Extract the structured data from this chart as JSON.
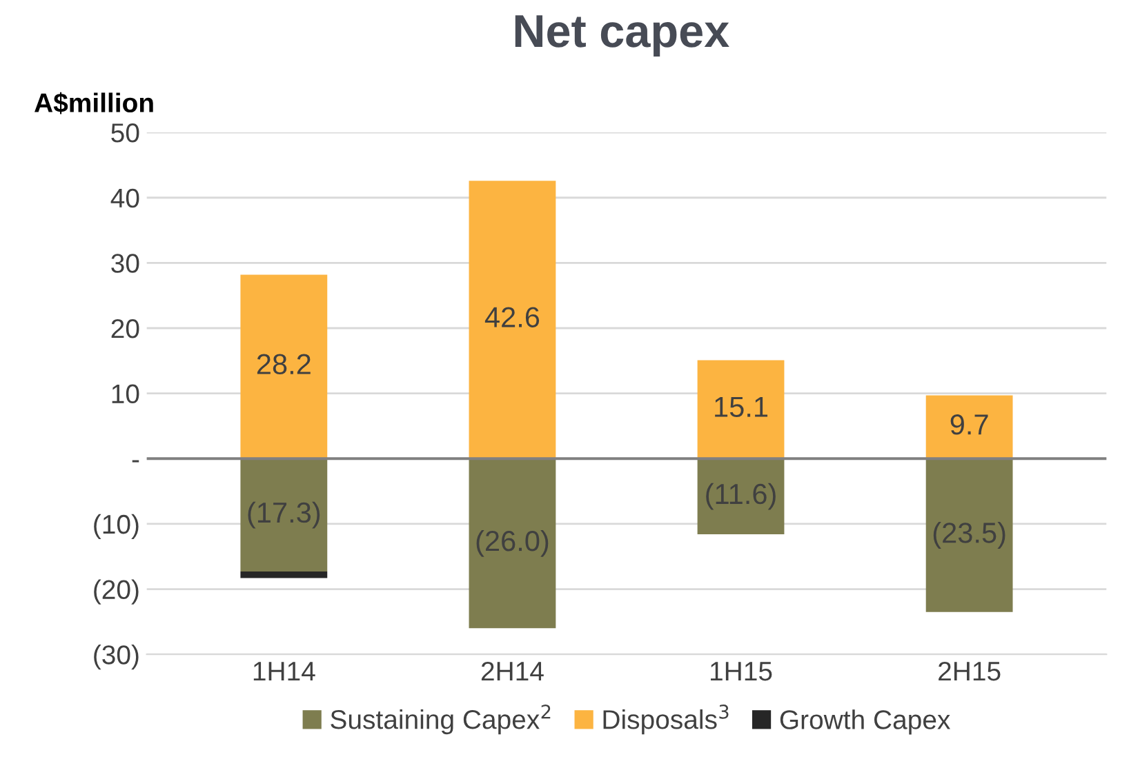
{
  "chart_data": {
    "type": "bar",
    "title": "Net capex",
    "ylabel": "A$million",
    "categories": [
      "1H14",
      "2H14",
      "1H15",
      "2H15"
    ],
    "stacked": true,
    "series": [
      {
        "name": "Sustaining Capex$^{2}$",
        "color": "#7e7d4f",
        "values": [
          -17.3,
          -26.0,
          -11.6,
          -23.5
        ],
        "value_labels": [
          "(17.3)",
          "(26.0)",
          "(11.6)",
          "(23.5)"
        ]
      },
      {
        "name": "Disposals$^{3}$",
        "color": "#fcb441",
        "values": [
          28.2,
          42.6,
          15.1,
          9.7
        ],
        "value_labels": [
          "28.2",
          "42.6",
          "15.1",
          "9.7"
        ]
      },
      {
        "name": "Growth Capex",
        "color": "#262626",
        "values": [
          -1.0,
          null,
          null,
          null
        ]
      }
    ],
    "ylim": [
      -30,
      50
    ],
    "yticks": [
      {
        "value": -30,
        "label": "(30)"
      },
      {
        "value": -20,
        "label": "(20)"
      },
      {
        "value": -10,
        "label": "(10)"
      },
      {
        "value": 0,
        "label": "-"
      },
      10,
      20,
      30,
      40,
      50
    ],
    "ref_lines": [
      {
        "axis": "y",
        "value": 0,
        "color": "#808080"
      }
    ],
    "grid": "y",
    "legend": "bottom"
  }
}
